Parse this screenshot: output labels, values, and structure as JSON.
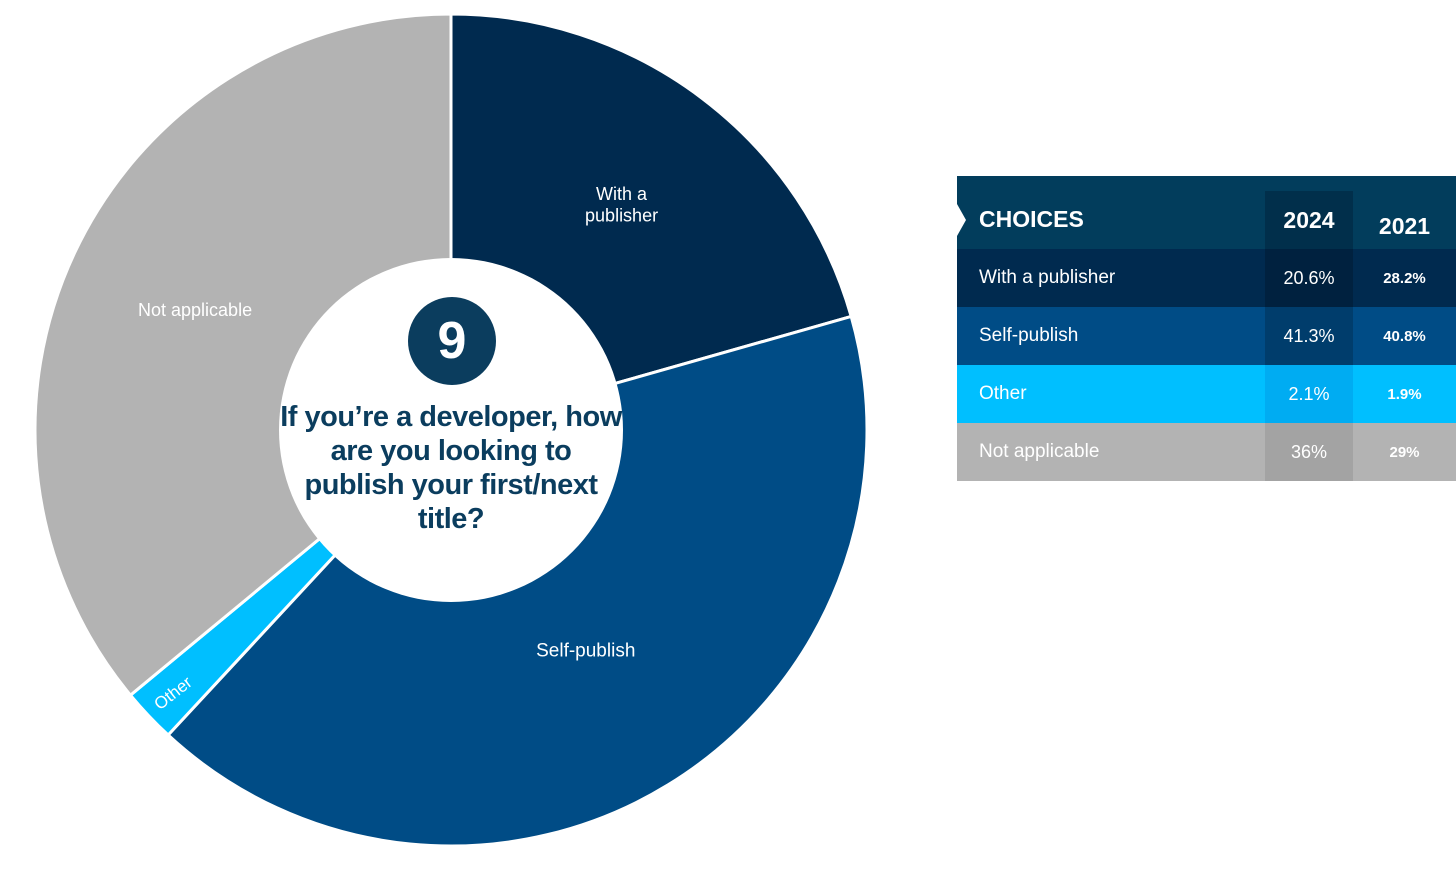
{
  "chart_data": {
    "type": "pie",
    "style": "donut",
    "question_number": "9",
    "title": "If you’re a developer, how are you looking to publish your first/next title?",
    "slices": [
      {
        "label": "With a publisher",
        "value": 20.6,
        "color": "#002a4f",
        "label_lines": [
          "With a",
          "publisher"
        ]
      },
      {
        "label": "Self-publish",
        "value": 41.3,
        "color": "#004c86",
        "label_lines": [
          "Self-publish"
        ]
      },
      {
        "label": "Other",
        "value": 2.1,
        "color": "#00bfff",
        "label_lines": [
          "Other"
        ]
      },
      {
        "label": "Not applicable",
        "value": 36,
        "color": "#b3b3b3",
        "label_lines": [
          "Not applicable"
        ]
      }
    ],
    "table": {
      "headers": [
        "CHOICES",
        "2024",
        "2021"
      ],
      "rows": [
        {
          "choice": "With a publisher",
          "v2024": "20.6%",
          "v2021": "28.2%",
          "row_color": "#002a4f",
          "cell_color": "#00213f"
        },
        {
          "choice": "Self-publish",
          "v2024": "41.3%",
          "v2021": "40.8%",
          "row_color": "#004c86",
          "cell_color": "#003d6c"
        },
        {
          "choice": "Other",
          "v2024": "2.1%",
          "v2021": "1.9%",
          "row_color": "#00bfff",
          "cell_color": "#00acf2"
        },
        {
          "choice": "Not applicable",
          "v2024": "36%",
          "v2021": "29%",
          "row_color": "#b3b3b3",
          "cell_color": "#a3a3a3"
        }
      ]
    }
  }
}
